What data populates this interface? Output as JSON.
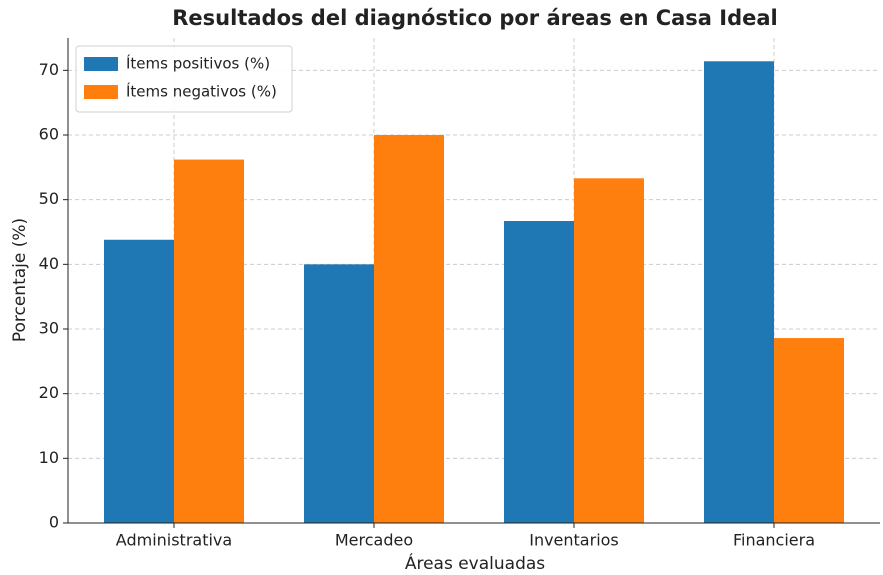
{
  "chart_data": {
    "type": "bar",
    "title": "Resultados del diagnóstico por áreas en Casa Ideal",
    "x_label": "Áreas evaluadas",
    "y_label": "Porcentaje (%)",
    "categories": [
      "Administrativa",
      "Mercadeo",
      "Inventarios",
      "Financiera"
    ],
    "series": [
      {
        "name": "Ítems positivos (%)",
        "color": "#1f77b4",
        "values": [
          43.8,
          40,
          46.7,
          71.4
        ]
      },
      {
        "name": "Ítems negativos (%)",
        "color": "#ff7f0e",
        "values": [
          56.2,
          60,
          53.3,
          28.6
        ]
      }
    ],
    "ylim": [
      0,
      75
    ],
    "yticks": [
      0,
      10,
      20,
      30,
      40,
      50,
      60,
      70
    ],
    "grid": true,
    "legend": "upper left"
  }
}
